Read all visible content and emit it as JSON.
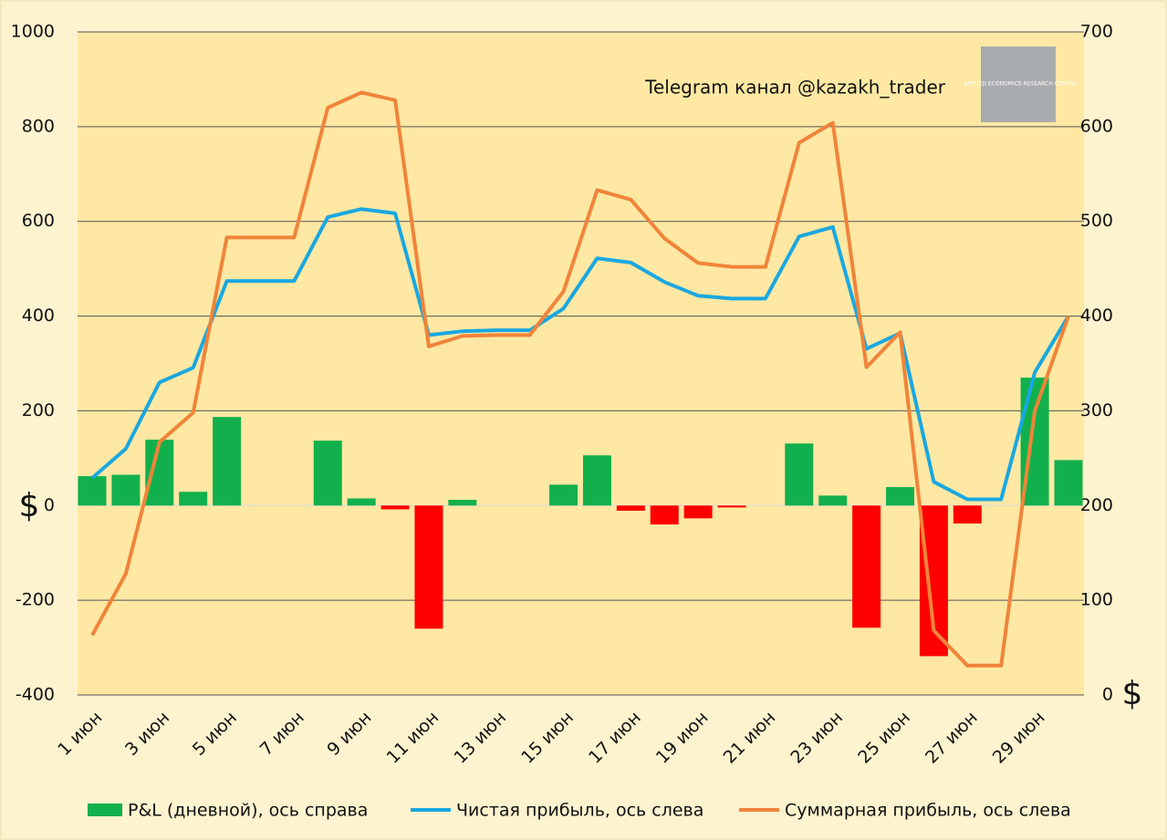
{
  "chart_data": {
    "type": "bar_line",
    "annotation": "Telegram канал @kazakh_trader",
    "logo_text": "APPLIED ECONOMICS RESEARCH CENTRE",
    "y_label": "$",
    "y2_label": "$",
    "categories": [
      "1 июн",
      null,
      "3 июн",
      null,
      "5 июн",
      null,
      "7 июн",
      null,
      "9 июн",
      null,
      "11 июн",
      null,
      "13 июн",
      null,
      "15 июн",
      null,
      "17 июн",
      null,
      "19 июн",
      null,
      "21 июн",
      null,
      "23 июн",
      null,
      "25 июн",
      null,
      "27 июн",
      null,
      "29 июн",
      null
    ],
    "ylim": [
      -400,
      1000
    ],
    "yticks": [
      -400,
      -200,
      0,
      200,
      400,
      600,
      800,
      1000
    ],
    "y2lim": [
      0,
      700
    ],
    "y2ticks": [
      0,
      100,
      200,
      300,
      400,
      500,
      600,
      700
    ],
    "grid": true,
    "series": [
      {
        "name": "P&L (дневной), ось справа",
        "type": "bar",
        "color": "#12b04c",
        "negative_color": "#ff0000",
        "values": [
          62,
          65,
          139,
          29,
          187,
          0,
          0,
          137,
          15,
          -8,
          -260,
          12,
          0,
          0,
          44,
          106,
          -11,
          -40,
          -27,
          -4,
          0,
          131,
          21,
          -258,
          39,
          -318,
          -38,
          0,
          270,
          96
        ]
      },
      {
        "name": "Чистая прибыль, ось слева",
        "type": "line",
        "color": "#1aa7e0",
        "values": [
          58,
          120,
          260,
          291,
          474,
          474,
          474,
          609,
          626,
          617,
          360,
          368,
          370,
          370,
          416,
          522,
          513,
          472,
          443,
          437,
          437,
          568,
          588,
          331,
          364,
          50,
          13,
          13,
          281,
          400
        ]
      },
      {
        "name": "Суммарная прибыль, ось слева",
        "type": "line",
        "axis": "y2",
        "color": "#f0843a",
        "values": [
          63,
          128,
          267,
          298,
          483,
          483,
          483,
          620,
          636,
          628,
          368,
          379,
          380,
          380,
          426,
          533,
          523,
          482,
          456,
          452,
          452,
          583,
          604,
          346,
          383,
          68,
          31,
          31,
          300,
          400
        ]
      }
    ]
  }
}
